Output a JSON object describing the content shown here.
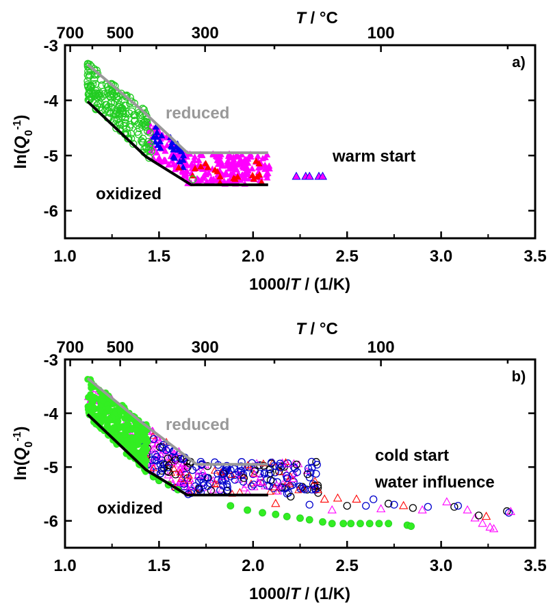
{
  "chart_data": [
    {
      "type": "scatter",
      "panel_label": "a)",
      "xlabel_prefix": "1000/",
      "xlabel_var": "T",
      "xlabel_suffix": " / (1/K)",
      "ylabel_prefix": "ln(",
      "ylabel_var": "Q",
      "ylabel_sub": "0",
      "ylabel_sup": "-1",
      "ylabel_suffix": ")",
      "top_axis_var": "T",
      "top_axis_unit": " / °C",
      "xlim": [
        1.0,
        3.5
      ],
      "ylim": [
        -6.5,
        -3.0
      ],
      "x_ticks": [
        "1.0",
        "1.5",
        "2.0",
        "2.5",
        "3.0",
        "3.5"
      ],
      "y_ticks": [
        "-3",
        "-4",
        "-5",
        "-6"
      ],
      "top_ticks": [
        "700",
        "500",
        "300",
        "100"
      ],
      "annotations": [
        "reduced",
        "oxidized",
        "warm start"
      ],
      "lines": [
        {
          "name": "reduced",
          "color": "#999999",
          "points": [
            [
              1.12,
              -3.35
            ],
            [
              1.4,
              -4.15
            ],
            [
              1.65,
              -4.95
            ],
            [
              2.08,
              -4.95
            ]
          ]
        },
        {
          "name": "oxidized",
          "color": "#000000",
          "points": [
            [
              1.12,
              -4.02
            ],
            [
              1.43,
              -5.02
            ],
            [
              1.67,
              -5.53
            ],
            [
              2.08,
              -5.53
            ]
          ]
        }
      ],
      "markers": [
        {
          "shape": "circle-open",
          "color": "#22cc22",
          "x_range": [
            1.12,
            1.45
          ],
          "y_center": "reduced-oxidized band",
          "count": 200
        },
        {
          "shape": "triangle-filled",
          "color": "#ff00ff",
          "x_range": [
            1.45,
            2.08
          ],
          "count": 220
        },
        {
          "shape": "triangle-filled",
          "color": "#0000ee",
          "x_range": [
            1.45,
            1.65
          ],
          "count": 25
        },
        {
          "shape": "triangle-filled",
          "color": "#ff0000",
          "x_range": [
            1.6,
            2.05
          ],
          "count": 20
        }
      ],
      "isolated_points": [
        [
          2.23,
          -5.38
        ],
        [
          2.28,
          -5.38
        ],
        [
          2.3,
          -5.38
        ],
        [
          2.35,
          -5.38
        ],
        [
          2.37,
          -5.38
        ]
      ]
    },
    {
      "type": "scatter",
      "panel_label": "b)",
      "xlabel_prefix": "1000/",
      "xlabel_var": "T",
      "xlabel_suffix": " / (1/K)",
      "ylabel_prefix": "ln(",
      "ylabel_var": "Q",
      "ylabel_sub": "0",
      "ylabel_sup": "-1",
      "ylabel_suffix": ")",
      "top_axis_var": "T",
      "top_axis_unit": " / °C",
      "xlim": [
        1.0,
        3.5
      ],
      "ylim": [
        -6.5,
        -3.0
      ],
      "x_ticks": [
        "1.0",
        "1.5",
        "2.0",
        "2.5",
        "3.0",
        "3.5"
      ],
      "y_ticks": [
        "-3",
        "-4",
        "-5",
        "-6"
      ],
      "top_ticks": [
        "700",
        "500",
        "300",
        "100"
      ],
      "annotations": [
        "reduced",
        "cold start",
        "water influence",
        "oxidized"
      ],
      "lines": [
        {
          "name": "reduced",
          "color": "#999999",
          "points": [
            [
              1.12,
              -3.35
            ],
            [
              1.4,
              -4.15
            ],
            [
              1.7,
              -4.95
            ],
            [
              2.08,
              -4.95
            ]
          ]
        },
        {
          "name": "oxidized",
          "color": "#000000",
          "points": [
            [
              1.12,
              -4.02
            ],
            [
              1.43,
              -5.05
            ],
            [
              1.65,
              -5.52
            ],
            [
              2.08,
              -5.52
            ]
          ]
        }
      ],
      "green_dots": [
        [
          1.47,
          -5.18
        ],
        [
          1.5,
          -5.25
        ],
        [
          1.55,
          -5.33
        ],
        [
          1.6,
          -5.42
        ],
        [
          1.88,
          -5.72
        ],
        [
          1.97,
          -5.8
        ],
        [
          2.05,
          -5.85
        ],
        [
          2.12,
          -5.88
        ],
        [
          2.18,
          -5.92
        ],
        [
          2.25,
          -5.95
        ],
        [
          2.3,
          -5.98
        ],
        [
          2.37,
          -6.02
        ],
        [
          2.42,
          -6.05
        ],
        [
          2.48,
          -6.05
        ],
        [
          2.52,
          -6.05
        ],
        [
          2.57,
          -6.05
        ],
        [
          2.62,
          -6.05
        ],
        [
          2.67,
          -6.05
        ],
        [
          2.72,
          -6.05
        ],
        [
          2.82,
          -6.08
        ],
        [
          2.84,
          -6.1
        ]
      ],
      "sparse_open_points": [
        {
          "x": 2.12,
          "y": -5.68,
          "color": "#ff0000",
          "shape": "triangle"
        },
        {
          "x": 2.2,
          "y": -5.55,
          "color": "#000000",
          "shape": "circle"
        },
        {
          "x": 2.3,
          "y": -5.7,
          "color": "#0000cc",
          "shape": "circle"
        },
        {
          "x": 2.38,
          "y": -5.6,
          "color": "#ff0000",
          "shape": "triangle"
        },
        {
          "x": 2.42,
          "y": -5.8,
          "color": "#ff00ff",
          "shape": "triangle"
        },
        {
          "x": 2.45,
          "y": -5.58,
          "color": "#ff0000",
          "shape": "triangle"
        },
        {
          "x": 2.5,
          "y": -5.72,
          "color": "#000000",
          "shape": "circle"
        },
        {
          "x": 2.55,
          "y": -5.6,
          "color": "#ff0000",
          "shape": "triangle"
        },
        {
          "x": 2.6,
          "y": -5.72,
          "color": "#0000cc",
          "shape": "circle"
        },
        {
          "x": 2.64,
          "y": -5.6,
          "color": "#0000cc",
          "shape": "circle"
        },
        {
          "x": 2.68,
          "y": -5.78,
          "color": "#ff00ff",
          "shape": "triangle"
        },
        {
          "x": 2.72,
          "y": -5.68,
          "color": "#000000",
          "shape": "circle"
        },
        {
          "x": 2.75,
          "y": -5.7,
          "color": "#0000cc",
          "shape": "circle"
        },
        {
          "x": 2.8,
          "y": -5.72,
          "color": "#ff0000",
          "shape": "triangle"
        },
        {
          "x": 2.85,
          "y": -5.76,
          "color": "#000000",
          "shape": "circle"
        },
        {
          "x": 2.9,
          "y": -5.8,
          "color": "#ff00ff",
          "shape": "triangle"
        },
        {
          "x": 2.93,
          "y": -5.74,
          "color": "#0000cc",
          "shape": "circle"
        },
        {
          "x": 3.03,
          "y": -5.65,
          "color": "#ff00ff",
          "shape": "triangle"
        },
        {
          "x": 3.07,
          "y": -5.74,
          "color": "#000000",
          "shape": "circle"
        },
        {
          "x": 3.09,
          "y": -5.72,
          "color": "#0000cc",
          "shape": "circle"
        },
        {
          "x": 3.14,
          "y": -5.8,
          "color": "#ff00ff",
          "shape": "triangle"
        },
        {
          "x": 3.18,
          "y": -5.95,
          "color": "#ff00ff",
          "shape": "triangle"
        },
        {
          "x": 3.2,
          "y": -5.9,
          "color": "#000000",
          "shape": "circle"
        },
        {
          "x": 3.22,
          "y": -6.05,
          "color": "#ff00ff",
          "shape": "triangle"
        },
        {
          "x": 3.24,
          "y": -5.92,
          "color": "#ff0000",
          "shape": "triangle"
        },
        {
          "x": 3.26,
          "y": -6.12,
          "color": "#ff00ff",
          "shape": "triangle"
        },
        {
          "x": 3.28,
          "y": -6.15,
          "color": "#ff00ff",
          "shape": "triangle"
        },
        {
          "x": 3.35,
          "y": -5.82,
          "color": "#000000",
          "shape": "circle"
        },
        {
          "x": 3.36,
          "y": -5.85,
          "color": "#0000cc",
          "shape": "circle"
        },
        {
          "x": 3.37,
          "y": -5.83,
          "color": "#ff00ff",
          "shape": "triangle"
        }
      ]
    }
  ]
}
